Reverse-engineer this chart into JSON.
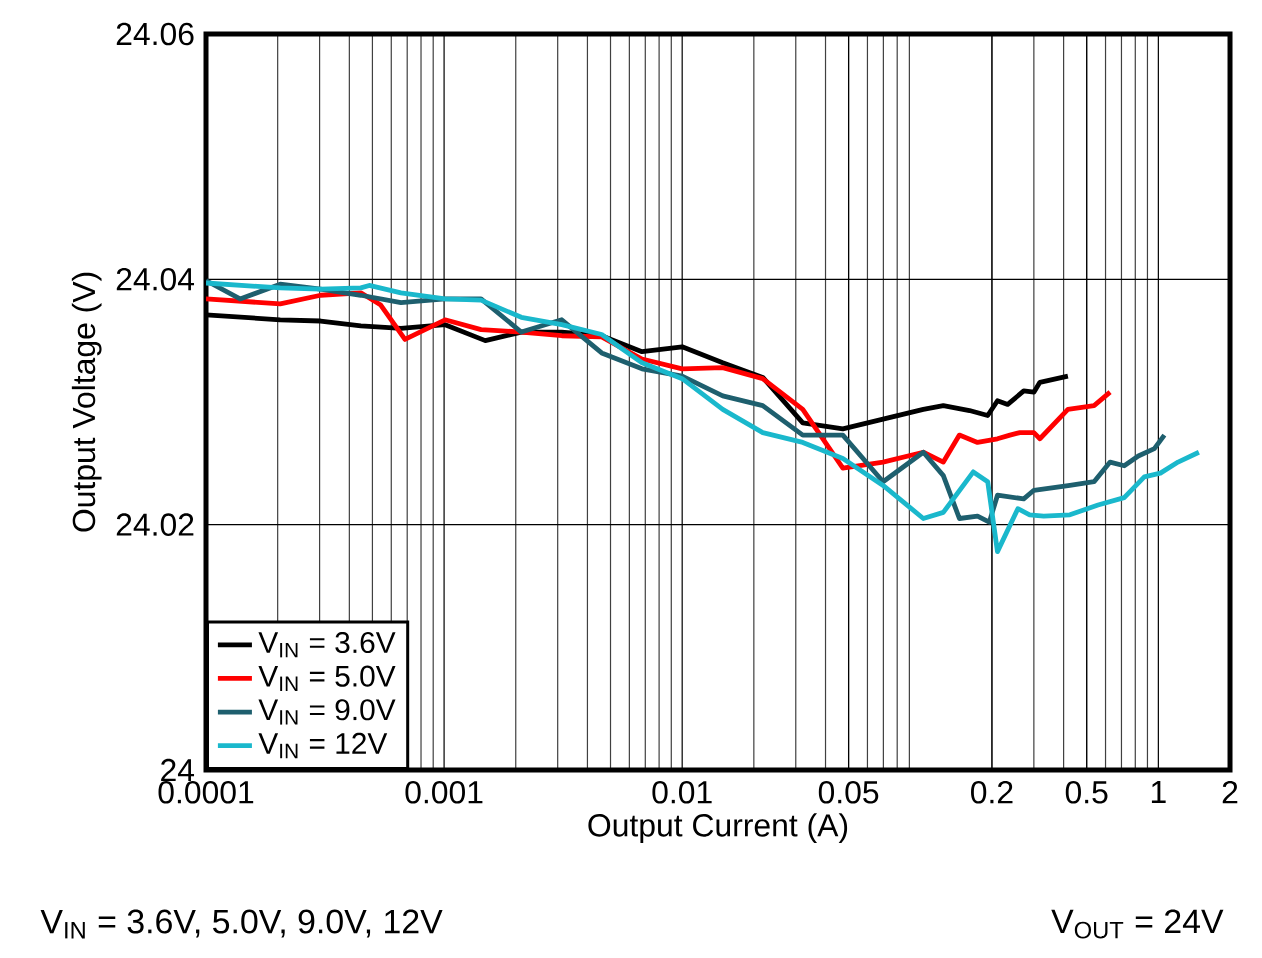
{
  "chart_data": {
    "type": "line",
    "xlabel": "Output Current (A)",
    "ylabel": "Output Voltage (V)",
    "log": "x",
    "grid": true,
    "legend": "bottom left",
    "line_style": "solid",
    "xlim": [
      0.0001,
      2
    ],
    "ylim": [
      24,
      24.06
    ],
    "xticks": [
      0.0001,
      0.001,
      0.01,
      0.05,
      0.2,
      0.5,
      1,
      2
    ],
    "yticks": [
      24,
      24.02,
      24.04,
      24.06
    ],
    "annotations": [
      "V$_{IN}$ = 3.6V, 5.0V, 9.0V, 12V",
      "V$_{OUT}$ = 24V"
    ],
    "series": [
      {
        "name": "V$_{IN}$ = 3.6V",
        "color": "#000000",
        "x": [
          0.0001,
          0.000205,
          0.000303,
          0.000447,
          0.000659,
          0.00101,
          0.00149,
          0.00211,
          0.00312,
          0.00459,
          0.00678,
          0.01,
          0.0148,
          0.0218,
          0.0321,
          0.0473,
          0.0698,
          0.103,
          0.125,
          0.161,
          0.192,
          0.211,
          0.233,
          0.272,
          0.3,
          0.318,
          0.417
        ],
        "values": [
          24.0371,
          24.0367,
          24.0366,
          24.0362,
          24.036,
          24.0363,
          24.035,
          24.0357,
          24.0357,
          24.0354,
          24.0341,
          24.0345,
          24.0332,
          24.032,
          24.0283,
          24.0278,
          24.0286,
          24.0294,
          24.0297,
          24.0293,
          24.0289,
          24.0301,
          24.0298,
          24.0309,
          24.0308,
          24.0316,
          24.0321
        ]
      },
      {
        "name": "V$_{IN}$ = 5.0V",
        "color": "#ff0000",
        "x": [
          0.0001,
          0.000205,
          0.000303,
          0.000447,
          0.000542,
          0.000685,
          0.00101,
          0.00143,
          0.00211,
          0.00312,
          0.00459,
          0.00678,
          0.01,
          0.0148,
          0.0218,
          0.0321,
          0.0473,
          0.0698,
          0.103,
          0.125,
          0.146,
          0.174,
          0.211,
          0.238,
          0.262,
          0.3,
          0.318,
          0.417,
          0.537,
          0.627
        ],
        "values": [
          24.0384,
          24.038,
          24.0387,
          24.0389,
          24.0379,
          24.0351,
          24.0367,
          24.0359,
          24.0357,
          24.0354,
          24.0353,
          24.0335,
          24.0327,
          24.0328,
          24.0319,
          24.0294,
          24.0246,
          24.0251,
          24.0259,
          24.0251,
          24.0273,
          24.0267,
          24.027,
          24.0273,
          24.0275,
          24.0275,
          24.027,
          24.0294,
          24.0297,
          24.0308
        ]
      },
      {
        "name": "V$_{IN}$ = 9.0V",
        "color": "#1e5f6e",
        "x": [
          0.0001,
          0.000139,
          0.000205,
          0.000303,
          0.000447,
          0.000659,
          0.00101,
          0.00143,
          0.00211,
          0.00312,
          0.00459,
          0.00678,
          0.01,
          0.0148,
          0.0218,
          0.0321,
          0.0473,
          0.0698,
          0.103,
          0.125,
          0.146,
          0.174,
          0.195,
          0.211,
          0.272,
          0.3,
          0.425,
          0.537,
          0.627,
          0.719,
          0.824,
          0.962,
          1.06
        ],
        "values": [
          24.0399,
          24.0384,
          24.0396,
          24.0392,
          24.0387,
          24.0381,
          24.0384,
          24.0384,
          24.0357,
          24.0367,
          24.034,
          24.0327,
          24.0321,
          24.0305,
          24.0297,
          24.0273,
          24.0273,
          24.0235,
          24.0259,
          24.024,
          24.0205,
          24.0207,
          24.0202,
          24.0224,
          24.0221,
          24.0228,
          24.0232,
          24.0235,
          24.0251,
          24.0248,
          24.0256,
          24.0262,
          24.0273
        ]
      },
      {
        "name": "V$_{IN}$ = 12V",
        "color": "#1ab8cc",
        "x": [
          0.0001,
          0.000205,
          0.000303,
          0.000447,
          0.000485,
          0.000659,
          0.00101,
          0.00143,
          0.00211,
          0.00312,
          0.00459,
          0.00678,
          0.01,
          0.0148,
          0.0218,
          0.0321,
          0.0473,
          0.0698,
          0.103,
          0.125,
          0.167,
          0.192,
          0.211,
          0.257,
          0.288,
          0.33,
          0.425,
          0.558,
          0.719,
          0.873,
          1.02,
          1.21,
          1.48
        ],
        "values": [
          24.0397,
          24.0393,
          24.0392,
          24.0393,
          24.0395,
          24.0389,
          24.0384,
          24.0383,
          24.0369,
          24.0363,
          24.0355,
          24.0332,
          24.0319,
          24.0294,
          24.0275,
          24.0267,
          24.0254,
          24.0232,
          24.0205,
          24.021,
          24.0243,
          24.0235,
          24.0178,
          24.0213,
          24.0208,
          24.0207,
          24.0208,
          24.0216,
          24.0222,
          24.0239,
          24.0242,
          24.0251,
          24.0259
        ]
      }
    ]
  }
}
